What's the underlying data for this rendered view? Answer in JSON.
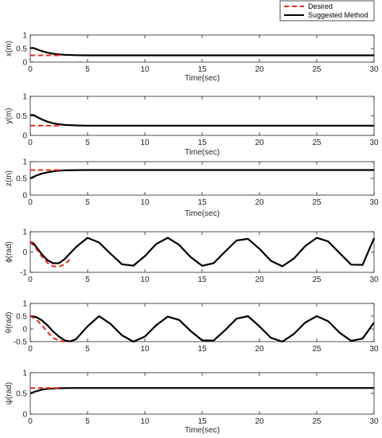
{
  "colors": {
    "desired": "#e32b1c",
    "suggested": "#000000",
    "axis": "#262626",
    "background": "#ffffff"
  },
  "legend": {
    "placement": "top-right",
    "entries": [
      "Desired",
      "Suggested Method"
    ]
  },
  "chart_data": [
    {
      "type": "line",
      "ylabel": "x(m)",
      "xlabel": "Time(sec)",
      "xlim": [
        0,
        30
      ],
      "ylim": [
        0,
        1
      ],
      "xticks": [
        "0",
        "5",
        "10",
        "15",
        "20",
        "25",
        "30"
      ],
      "yticks": [
        "0",
        "0.5",
        "1"
      ],
      "series": [
        {
          "name": "Desired",
          "x": [
            0,
            2.5
          ],
          "y": [
            0.25,
            0.25
          ]
        },
        {
          "name": "Suggested Method",
          "x": [
            0,
            0.3,
            0.6,
            1,
            1.5,
            2,
            2.5,
            3,
            4,
            5,
            7,
            30
          ],
          "y": [
            0.52,
            0.52,
            0.47,
            0.41,
            0.35,
            0.31,
            0.285,
            0.27,
            0.255,
            0.25,
            0.25,
            0.25
          ]
        }
      ]
    },
    {
      "type": "line",
      "ylabel": "y(m)",
      "xlabel": "Time(sec)",
      "xlim": [
        0,
        30
      ],
      "ylim": [
        0,
        1
      ],
      "xticks": [
        "0",
        "5",
        "10",
        "15",
        "20",
        "25",
        "30"
      ],
      "yticks": [
        "0",
        "0.5",
        "1"
      ],
      "series": [
        {
          "name": "Desired",
          "x": [
            0,
            2.5
          ],
          "y": [
            0.25,
            0.25
          ]
        },
        {
          "name": "Suggested Method",
          "x": [
            0,
            0.3,
            0.6,
            1,
            1.5,
            2,
            2.5,
            3,
            4,
            5,
            7,
            30
          ],
          "y": [
            0.52,
            0.52,
            0.47,
            0.41,
            0.35,
            0.31,
            0.285,
            0.27,
            0.255,
            0.25,
            0.25,
            0.25
          ]
        }
      ]
    },
    {
      "type": "line",
      "ylabel": "z(m)",
      "xlabel": "Time(sec)",
      "xlim": [
        0,
        30
      ],
      "ylim": [
        0,
        1
      ],
      "xticks": [
        "0",
        "5",
        "10",
        "15",
        "20",
        "25",
        "30"
      ],
      "yticks": [
        "0",
        "0.5",
        "1"
      ],
      "series": [
        {
          "name": "Desired",
          "x": [
            0,
            2.5
          ],
          "y": [
            0.75,
            0.75
          ]
        },
        {
          "name": "Suggested Method",
          "x": [
            0,
            0.5,
            1,
            1.5,
            2,
            2.5,
            3,
            4,
            5,
            30
          ],
          "y": [
            0.5,
            0.58,
            0.64,
            0.68,
            0.71,
            0.73,
            0.74,
            0.748,
            0.75,
            0.75
          ]
        }
      ]
    },
    {
      "type": "line",
      "ylabel": "ϕ(rad)",
      "xlabel": "",
      "xlim": [
        0,
        30
      ],
      "ylim": [
        -1,
        1
      ],
      "xticks": [
        "0",
        "5",
        "10",
        "15",
        "20",
        "25",
        "30"
      ],
      "yticks": [
        "-1",
        "0",
        "1"
      ],
      "series": [
        {
          "name": "Desired",
          "x": [
            0,
            0.5,
            1,
            1.5,
            2,
            2.5,
            3,
            3.5
          ],
          "y": [
            0.5,
            0.17,
            -0.21,
            -0.52,
            -0.7,
            -0.72,
            -0.6,
            -0.36
          ]
        },
        {
          "name": "Suggested Method",
          "x": [
            0,
            0.3,
            0.6,
            1,
            1.5,
            2,
            2.5,
            3,
            3.5,
            4,
            5,
            6,
            7,
            8,
            9,
            10,
            11,
            12,
            13,
            14,
            15,
            16,
            17,
            18,
            19,
            20,
            21,
            22,
            23,
            24,
            25,
            26,
            27,
            28,
            29,
            30
          ],
          "y": [
            0.5,
            0.42,
            0.2,
            -0.1,
            -0.4,
            -0.55,
            -0.55,
            -0.35,
            -0.05,
            0.25,
            0.7,
            0.47,
            -0.08,
            -0.6,
            -0.67,
            -0.2,
            0.4,
            0.7,
            0.35,
            -0.25,
            -0.68,
            -0.55,
            0.02,
            0.57,
            0.65,
            0.16,
            -0.43,
            -0.7,
            -0.32,
            0.3,
            0.7,
            0.52,
            -0.05,
            -0.62,
            -0.63,
            0.68
          ]
        }
      ]
    },
    {
      "type": "line",
      "ylabel": "θ(rad)",
      "xlabel": "",
      "xlim": [
        0,
        30
      ],
      "ylim": [
        -0.5,
        1
      ],
      "xticks": [
        "0",
        "5",
        "10",
        "15",
        "20",
        "25",
        "30"
      ],
      "yticks": [
        "-0.5",
        "0",
        "0.5",
        "1"
      ],
      "series": [
        {
          "name": "Desired",
          "x": [
            0,
            0.5,
            1,
            1.5,
            2,
            2.5,
            3
          ],
          "y": [
            0.5,
            0.38,
            0.15,
            -0.12,
            -0.35,
            -0.47,
            -0.5
          ]
        },
        {
          "name": "Suggested Method",
          "x": [
            0,
            0.5,
            1,
            1.5,
            2,
            2.5,
            3,
            3.5,
            4,
            5,
            6,
            7,
            8,
            9,
            10,
            11,
            12,
            13,
            14,
            15,
            16,
            17,
            18,
            19,
            20,
            21,
            22,
            23,
            24,
            25,
            26,
            27,
            28,
            29,
            30
          ],
          "y": [
            0.5,
            0.47,
            0.34,
            0.14,
            -0.1,
            -0.3,
            -0.45,
            -0.49,
            -0.4,
            0.1,
            0.5,
            0.2,
            -0.25,
            -0.5,
            -0.3,
            0.15,
            0.48,
            0.35,
            -0.08,
            -0.45,
            -0.46,
            -0.05,
            0.4,
            0.5,
            0.1,
            -0.35,
            -0.5,
            -0.2,
            0.25,
            0.5,
            0.3,
            -0.15,
            -0.47,
            -0.38,
            0.25
          ]
        }
      ]
    },
    {
      "type": "line",
      "ylabel": "ψ(rad)",
      "xlabel": "Time(sec)",
      "xlim": [
        0,
        30
      ],
      "ylim": [
        0,
        1
      ],
      "xticks": [
        "0",
        "5",
        "10",
        "15",
        "20",
        "25",
        "30"
      ],
      "yticks": [
        "0",
        "0.5",
        "1"
      ],
      "series": [
        {
          "name": "Desired",
          "x": [
            0,
            2.5
          ],
          "y": [
            0.63,
            0.63
          ]
        },
        {
          "name": "Suggested Method",
          "x": [
            0,
            0.5,
            1,
            1.5,
            2,
            2.5,
            3,
            4,
            30
          ],
          "y": [
            0.5,
            0.55,
            0.59,
            0.61,
            0.62,
            0.625,
            0.628,
            0.63,
            0.63
          ]
        }
      ]
    }
  ]
}
